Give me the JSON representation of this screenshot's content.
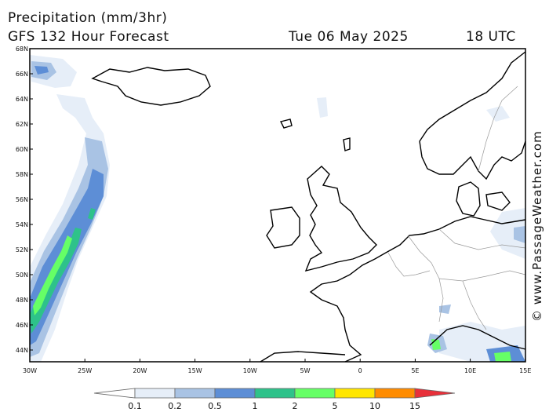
{
  "header": {
    "title": "Precipitation (mm/3hr)",
    "subtitle": "GFS 132 Hour Forecast",
    "date": "Tue 06 May 2025",
    "time": "18 UTC"
  },
  "credit": "© www.PassageWeather.com",
  "map": {
    "lat_labels": [
      "68N",
      "66N",
      "64N",
      "62N",
      "60N",
      "58N",
      "56N",
      "54N",
      "52N",
      "50N",
      "48N",
      "46N",
      "44N"
    ],
    "lon_labels": [
      "30W",
      "25W",
      "20W",
      "15W",
      "10W",
      "5W",
      "0",
      "5E",
      "10E",
      "15E"
    ],
    "land_color": "#ffffff",
    "sea_color": "#ffffff",
    "coast_color": "#000000"
  },
  "colorbar": {
    "labels": [
      "0.1",
      "0.2",
      "0.5",
      "1",
      "2",
      "5",
      "10",
      "15"
    ],
    "colors": [
      "#ffffff",
      "#e6eef8",
      "#a9c3e4",
      "#5d8ed6",
      "#2ec28a",
      "#66ff66",
      "#ffe600",
      "#ff8c00",
      "#e8303a"
    ]
  }
}
